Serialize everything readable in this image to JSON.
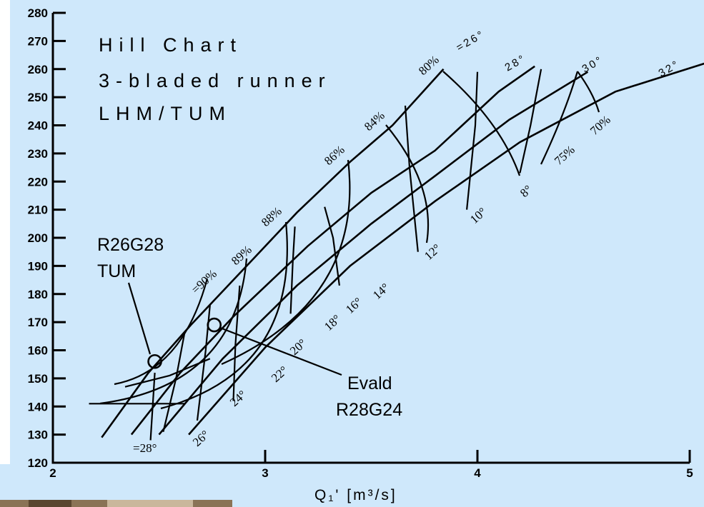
{
  "chart_data": {
    "type": "line",
    "title_lines": [
      "Hill Chart",
      "3-bladed runner",
      "LHM/TUM"
    ],
    "xlabel": "Q₁'  [m³/s]",
    "ylabel": "",
    "xlim": [
      2,
      5
    ],
    "ylim": [
      120,
      280
    ],
    "x_ticks": [
      2,
      3,
      4,
      5
    ],
    "y_ticks": [
      120,
      130,
      140,
      150,
      160,
      170,
      180,
      190,
      200,
      210,
      220,
      230,
      240,
      250,
      260,
      270,
      280
    ],
    "grid": false,
    "runner_blade_angles": [
      {
        "label": "=26°",
        "points": [
          [
            2.23,
            129
          ],
          [
            2.45,
            152
          ],
          [
            2.65,
            169
          ],
          [
            2.95,
            193
          ],
          [
            3.15,
            209
          ],
          [
            3.4,
            227
          ],
          [
            3.6,
            240
          ],
          [
            3.84,
            260
          ]
        ]
      },
      {
        "label": "28°",
        "points": [
          [
            2.37,
            130
          ],
          [
            2.6,
            152
          ],
          [
            2.85,
            172
          ],
          [
            3.2,
            197
          ],
          [
            3.5,
            216
          ],
          [
            3.8,
            231
          ],
          [
            4.1,
            252
          ],
          [
            4.27,
            261
          ]
        ]
      },
      {
        "label": "30°",
        "points": [
          [
            2.5,
            130
          ],
          [
            2.8,
            157
          ],
          [
            3.15,
            183
          ],
          [
            3.5,
            205
          ],
          [
            3.8,
            222
          ],
          [
            4.15,
            242
          ],
          [
            4.52,
            259
          ]
        ]
      },
      {
        "label": "32°",
        "points": [
          [
            2.64,
            130
          ],
          [
            3.0,
            161
          ],
          [
            3.4,
            190
          ],
          [
            3.8,
            213
          ],
          [
            4.2,
            234
          ],
          [
            4.65,
            252
          ],
          [
            5.07,
            262
          ]
        ]
      }
    ],
    "guide_vane_openings": [
      {
        "label": "=28°",
        "points": [
          [
            2.17,
            141
          ],
          [
            2.37,
            141
          ],
          [
            2.62,
            141
          ]
        ]
      },
      {
        "label": "26°",
        "points": [
          [
            2.34,
            147
          ],
          [
            2.55,
            151
          ],
          [
            2.74,
            157
          ]
        ]
      },
      {
        "label": "24°",
        "points": [
          [
            2.46,
            128
          ],
          [
            2.48,
            152
          ]
        ]
      },
      {
        "label": "22°",
        "points": [
          [
            2.52,
            131
          ],
          [
            2.58,
            150
          ],
          [
            2.62,
            166
          ]
        ]
      },
      {
        "label": "20°",
        "points": [
          [
            2.68,
            135
          ],
          [
            2.72,
            160
          ],
          [
            2.74,
            176
          ]
        ]
      },
      {
        "label": "18°",
        "points": [
          [
            2.85,
            142
          ],
          [
            2.86,
            162
          ],
          [
            2.88,
            183
          ]
        ]
      },
      {
        "label": "16°",
        "points": [
          [
            3.12,
            173
          ],
          [
            3.13,
            191
          ],
          [
            3.14,
            204
          ]
        ]
      },
      {
        "label": "14°",
        "points": [
          [
            3.35,
            183
          ],
          [
            3.32,
            200
          ],
          [
            3.28,
            211
          ]
        ]
      },
      {
        "label": "12°",
        "points": [
          [
            3.72,
            195
          ],
          [
            3.68,
            225
          ],
          [
            3.66,
            247
          ]
        ]
      },
      {
        "label": "10°",
        "points": [
          [
            3.95,
            210
          ],
          [
            3.99,
            240
          ],
          [
            4.0,
            259
          ]
        ]
      },
      {
        "label": "8°",
        "points": [
          [
            4.2,
            223
          ],
          [
            4.25,
            240
          ],
          [
            4.3,
            260
          ]
        ]
      }
    ],
    "efficiency_contours": [
      {
        "label": "=90%"
      },
      {
        "label": "89%"
      },
      {
        "label": "88%"
      },
      {
        "label": "86%"
      },
      {
        "label": "84%"
      },
      {
        "label": "80%"
      },
      {
        "label": "75%"
      },
      {
        "label": "70%"
      }
    ],
    "annotations": [
      {
        "text_lines": [
          "R26G28",
          "TUM"
        ],
        "point": [
          2.48,
          156
        ]
      },
      {
        "text_lines": [
          "Evald",
          "R28G24"
        ],
        "point": [
          2.76,
          169
        ]
      }
    ]
  }
}
